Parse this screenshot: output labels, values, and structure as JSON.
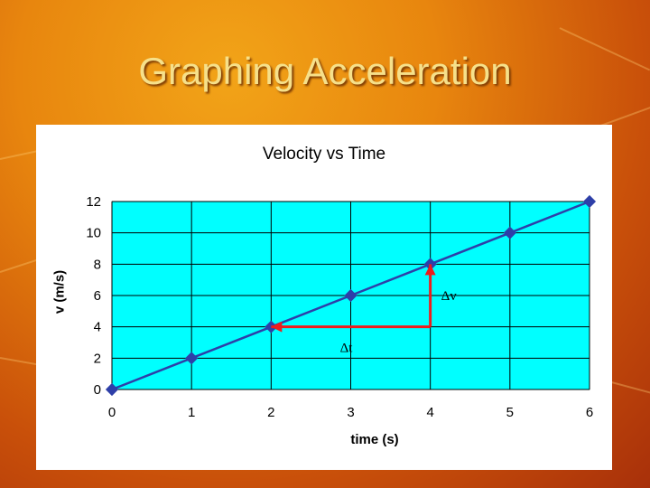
{
  "slide": {
    "title": "Graphing Acceleration"
  },
  "chart_data": {
    "type": "line",
    "title": "Velocity vs Time",
    "xlabel": "time (s)",
    "ylabel": "v (m/s)",
    "x": [
      0,
      1,
      2,
      3,
      4,
      5,
      6
    ],
    "series": [
      {
        "values": [
          0,
          2,
          4,
          6,
          8,
          10,
          12
        ]
      }
    ],
    "xlim": [
      0,
      6
    ],
    "ylim": [
      0,
      12
    ],
    "xticks": [
      0,
      1,
      2,
      3,
      4,
      5,
      6
    ],
    "yticks": [
      0,
      2,
      4,
      6,
      8,
      10,
      12
    ],
    "grid": true,
    "plot_background": "#00ffff",
    "line_color": "#2e3fa8",
    "annotations": [
      {
        "label": "Δt",
        "from": [
          4,
          4
        ],
        "to": [
          2,
          4
        ],
        "color": "#ee1c1c"
      },
      {
        "label": "Δv",
        "from": [
          4,
          4
        ],
        "to": [
          4,
          8
        ],
        "color": "#ee1c1c"
      }
    ]
  }
}
